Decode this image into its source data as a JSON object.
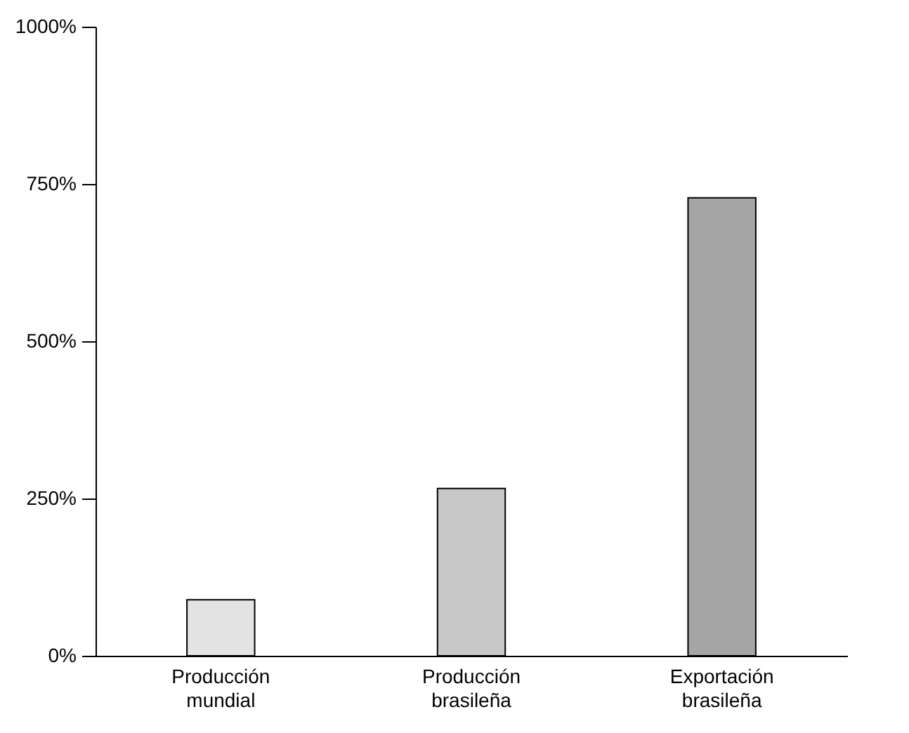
{
  "chart_data": {
    "type": "bar",
    "categories": [
      "Producción mundial",
      "Producción brasileña",
      "Exportación brasileña"
    ],
    "values": [
      89,
      266,
      728
    ],
    "colors": [
      "#e3e3e3",
      "#c8c8c8",
      "#a5a5a5"
    ],
    "ylim": [
      0,
      1000
    ],
    "yticks": [
      {
        "value": 0,
        "label": "0%"
      },
      {
        "value": 250,
        "label": "250%"
      },
      {
        "value": 500,
        "label": "500%"
      },
      {
        "value": 750,
        "label": "750%"
      },
      {
        "value": 1000,
        "label": "1000%"
      }
    ],
    "grid": false,
    "legend": false
  }
}
